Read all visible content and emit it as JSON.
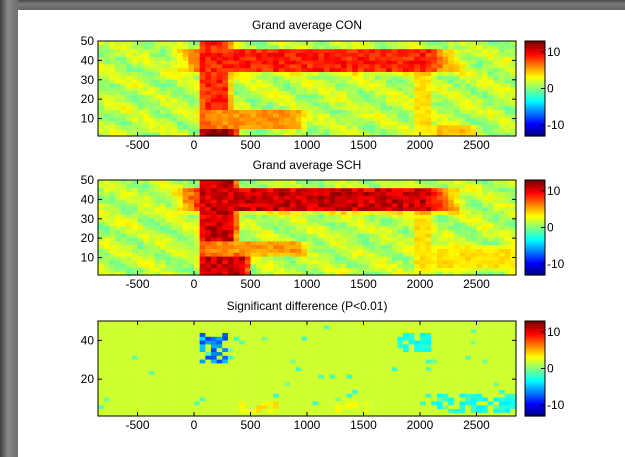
{
  "chart_data": [
    {
      "type": "heatmap",
      "title": "Grand average CON",
      "x_ticks": [
        "-500",
        "0",
        "500",
        "1000",
        "1500",
        "2000",
        "2500"
      ],
      "x_tick_values": [
        -500,
        0,
        500,
        1000,
        1500,
        2000,
        2500
      ],
      "y_ticks": [
        "10",
        "20",
        "30",
        "40",
        "50"
      ],
      "y_tick_values": [
        10,
        20,
        30,
        40,
        50
      ],
      "xlim": [
        -850,
        2850
      ],
      "ylim": [
        1,
        50
      ],
      "colorbar": {
        "ticks": [
          "10",
          "0",
          "-10"
        ],
        "tick_values": [
          10,
          0,
          -10
        ],
        "range": [
          -13,
          13
        ]
      },
      "features": [
        {
          "kind": "onset_band",
          "x": [
            80,
            300
          ],
          "y": [
            1,
            50
          ],
          "value": 9
        },
        {
          "kind": "offset_band",
          "x": [
            1950,
            2100
          ],
          "y": [
            5,
            40
          ],
          "value": 4
        },
        {
          "kind": "high_freq_band",
          "x": [
            150,
            2050
          ],
          "y": [
            35,
            45
          ],
          "value": 9
        },
        {
          "kind": "onset_burst",
          "x": [
            100,
            350
          ],
          "y": [
            1,
            10
          ],
          "value": 13
        },
        {
          "kind": "low_freq_band",
          "x": [
            150,
            900
          ],
          "y": [
            6,
            14
          ],
          "value": 6
        },
        {
          "kind": "offset_burst",
          "x": [
            2150,
            2450
          ],
          "y": [
            1,
            6
          ],
          "value": 5
        }
      ]
    },
    {
      "type": "heatmap",
      "title": "Grand average SCH",
      "x_ticks": [
        "-500",
        "0",
        "500",
        "1000",
        "1500",
        "2000",
        "2500"
      ],
      "x_tick_values": [
        -500,
        0,
        500,
        1000,
        1500,
        2000,
        2500
      ],
      "y_ticks": [
        "10",
        "20",
        "30",
        "40",
        "50"
      ],
      "y_tick_values": [
        10,
        20,
        30,
        40,
        50
      ],
      "xlim": [
        -850,
        2850
      ],
      "ylim": [
        1,
        50
      ],
      "colorbar": {
        "ticks": [
          "10",
          "0",
          "-10"
        ],
        "tick_values": [
          10,
          0,
          -10
        ],
        "range": [
          -13,
          13
        ]
      },
      "features": [
        {
          "kind": "onset_band",
          "x": [
            80,
            350
          ],
          "y": [
            1,
            50
          ],
          "value": 11
        },
        {
          "kind": "offset_band",
          "x": [
            1950,
            2100
          ],
          "y": [
            5,
            40
          ],
          "value": 4
        },
        {
          "kind": "high_freq_band",
          "x": [
            150,
            2050
          ],
          "y": [
            35,
            45
          ],
          "value": 11
        },
        {
          "kind": "onset_burst",
          "x": [
            100,
            450
          ],
          "y": [
            1,
            12
          ],
          "value": 11
        },
        {
          "kind": "low_freq_band",
          "x": [
            150,
            900
          ],
          "y": [
            12,
            18
          ],
          "value": 6
        },
        {
          "kind": "offset_tail",
          "x": [
            2150,
            2800
          ],
          "y": [
            5,
            15
          ],
          "value": 4
        }
      ]
    },
    {
      "type": "heatmap",
      "title": "Significant difference (P<0.01)",
      "x_ticks": [
        "-500",
        "0",
        "500",
        "1000",
        "1500",
        "2000",
        "2500"
      ],
      "x_tick_values": [
        -500,
        0,
        500,
        1000,
        1500,
        2000,
        2500
      ],
      "y_ticks": [
        "20",
        "40"
      ],
      "y_tick_values": [
        20,
        40
      ],
      "xlim": [
        -850,
        2850
      ],
      "ylim": [
        1,
        50
      ],
      "colorbar": {
        "ticks": [
          "10",
          "0",
          "-10"
        ],
        "tick_values": [
          10,
          0,
          -10
        ],
        "range": [
          -13,
          13
        ]
      },
      "features": [
        {
          "kind": "neg_cluster",
          "x": [
            50,
            300
          ],
          "y": [
            28,
            45
          ],
          "value": -7
        },
        {
          "kind": "neg_cluster",
          "x": [
            1800,
            2100
          ],
          "y": [
            35,
            45
          ],
          "value": -3
        },
        {
          "kind": "pos_cluster",
          "x": [
            400,
            750
          ],
          "y": [
            2,
            8
          ],
          "value": 4
        },
        {
          "kind": "pos_cluster",
          "x": [
            1200,
            1550
          ],
          "y": [
            2,
            8
          ],
          "value": 3
        },
        {
          "kind": "neg_cluster",
          "x": [
            2100,
            2850
          ],
          "y": [
            2,
            12
          ],
          "value": -3
        }
      ]
    }
  ]
}
